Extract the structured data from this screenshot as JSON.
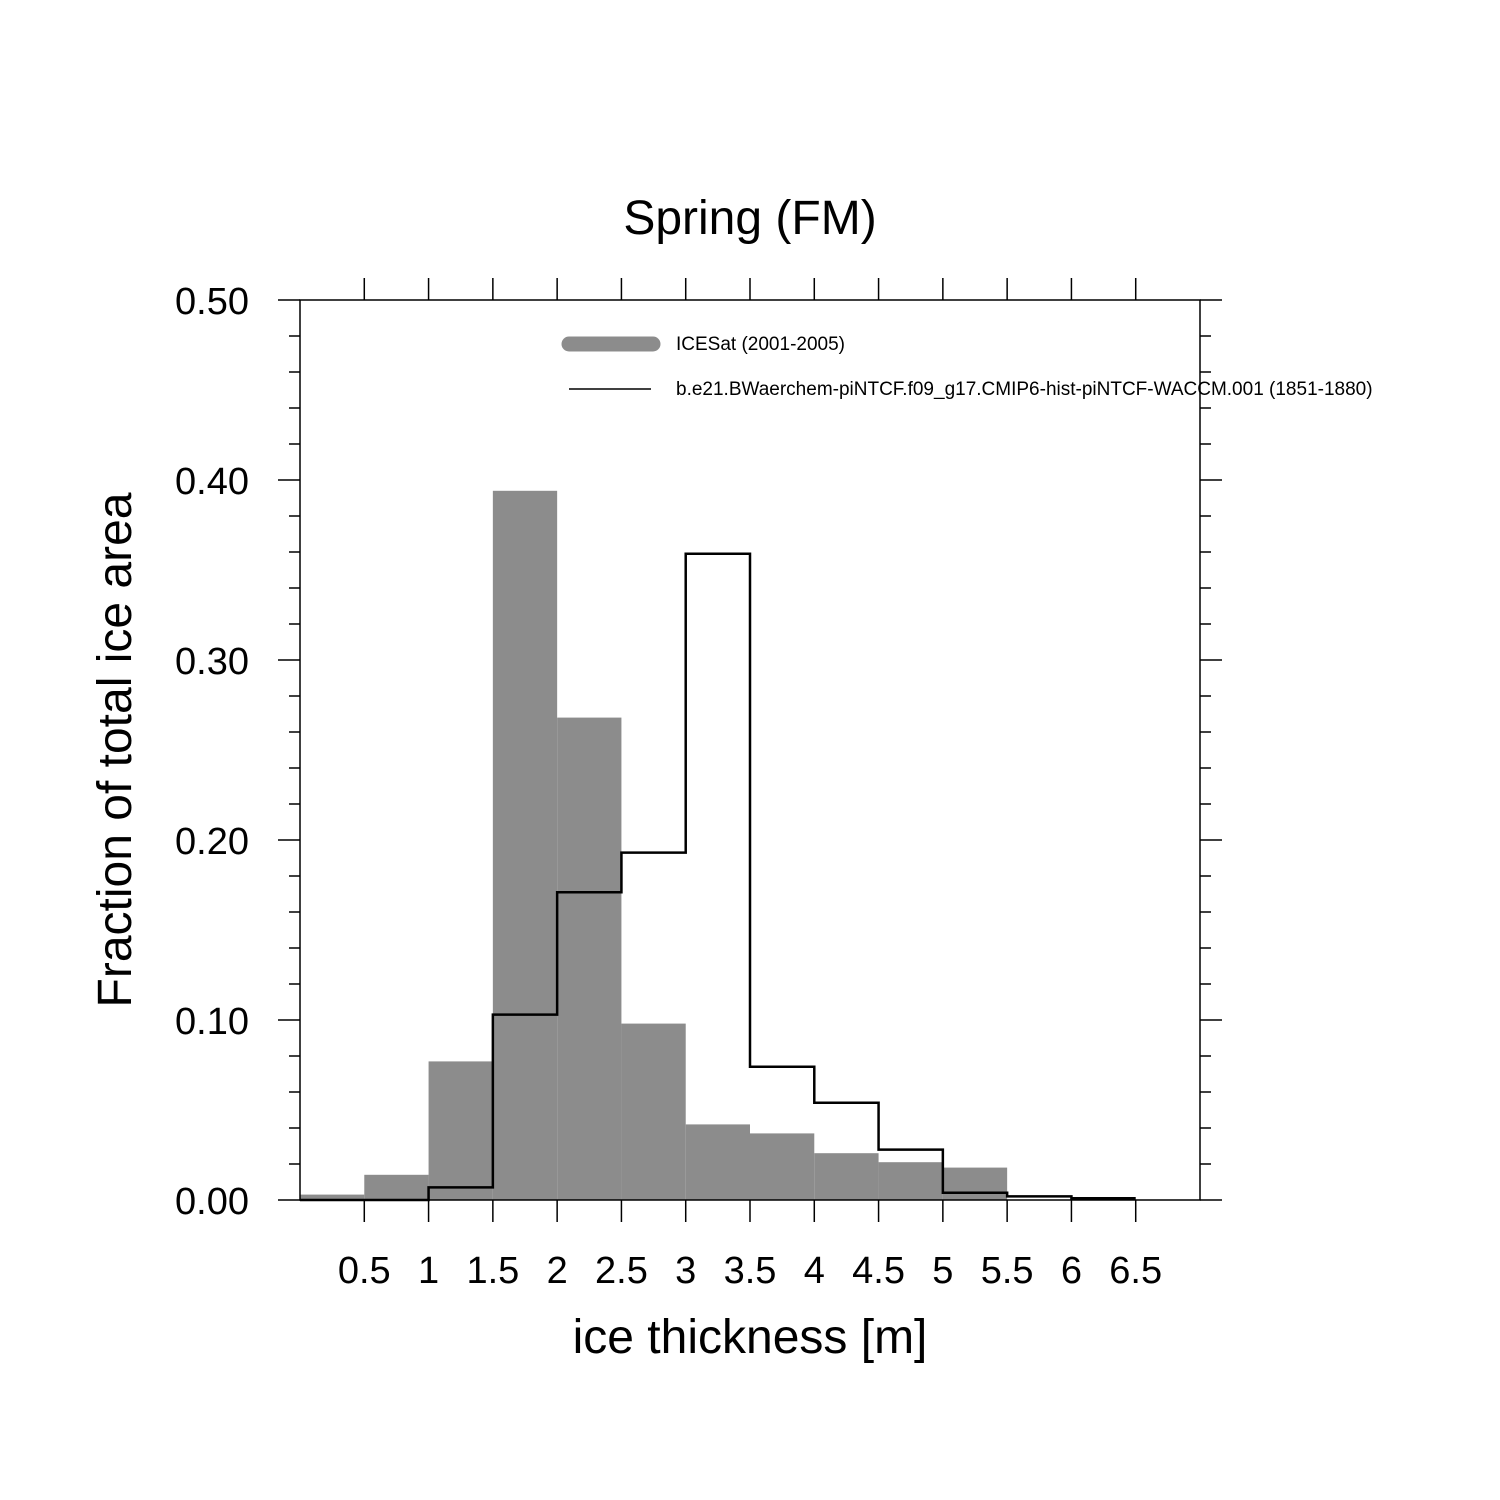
{
  "chart_data": {
    "type": "bar",
    "title": "Spring (FM)",
    "xlabel": "ice thickness [m]",
    "ylabel": "Fraction of total ice area",
    "xlim": [
      0,
      7
    ],
    "ylim": [
      0,
      0.5
    ],
    "x_ticks": [
      0.5,
      1,
      1.5,
      2,
      2.5,
      3,
      3.5,
      4,
      4.5,
      5,
      5.5,
      6,
      6.5
    ],
    "x_tick_labels": [
      "0.5",
      "1",
      "1.5",
      "2",
      "2.5",
      "3",
      "3.5",
      "4",
      "4.5",
      "5",
      "5.5",
      "6",
      "6.5"
    ],
    "y_ticks": [
      0,
      0.1,
      0.2,
      0.3,
      0.4,
      0.5
    ],
    "y_tick_labels": [
      "0.00",
      "0.10",
      "0.20",
      "0.30",
      "0.40",
      "0.50"
    ],
    "bin_edges": [
      0,
      0.5,
      1,
      1.5,
      2,
      2.5,
      3,
      3.5,
      4,
      4.5,
      5,
      5.5,
      6,
      6.5
    ],
    "legend_position": "top",
    "series": [
      {
        "name": "ICESat (2001-2005)",
        "style": "filled-bars",
        "color": "#8c8c8c",
        "values": [
          0.003,
          0.014,
          0.077,
          0.394,
          0.268,
          0.098,
          0.042,
          0.037,
          0.026,
          0.021,
          0.018,
          0.0,
          0.0
        ]
      },
      {
        "name": "b.e21.BWaerchem-piNTCF.f09_g17.CMIP6-hist-piNTCF-WACCM.001 (1851-1880)",
        "style": "step-line",
        "color": "#000000",
        "values": [
          0.0,
          0.0,
          0.007,
          0.103,
          0.171,
          0.193,
          0.359,
          0.074,
          0.054,
          0.028,
          0.004,
          0.002,
          0.001
        ]
      }
    ]
  }
}
